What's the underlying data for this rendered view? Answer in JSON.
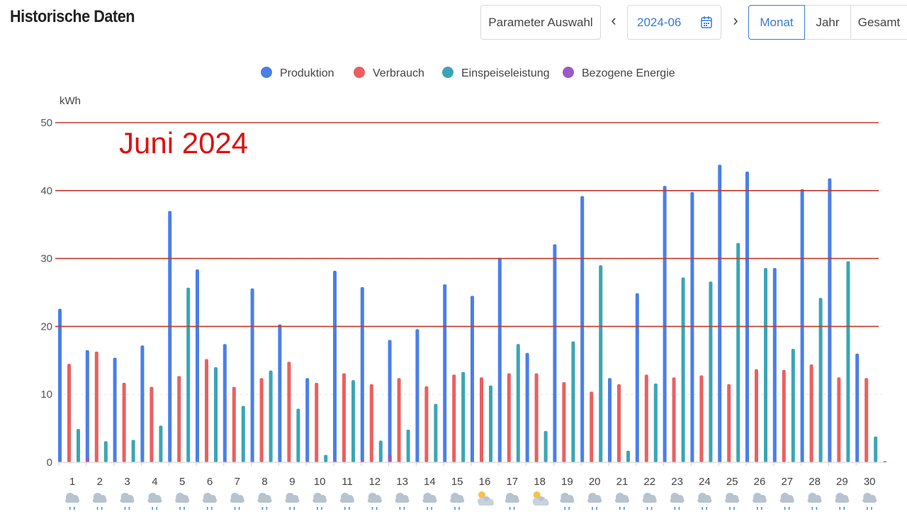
{
  "header": {
    "title": "Historische Daten",
    "param_button": "Parameter Auswahl",
    "date_value": "2024-06",
    "prev_icon": "chevron-left-icon",
    "next_icon": "chevron-right-icon",
    "calendar_icon": "calendar-icon",
    "views": [
      {
        "label": "Monat",
        "active": true
      },
      {
        "label": "Jahr",
        "active": false
      },
      {
        "label": "Gesamt",
        "active": false
      }
    ]
  },
  "colors": {
    "Produktion": "#4a7fe8",
    "Verbrauch": "#ec5f5f",
    "Einspeiseleistung": "#3ba5b5",
    "Bezogene Energie": "#9b59c9",
    "annotation": "#dd1111",
    "hline": "#c0392b"
  },
  "chart_data": {
    "type": "bar",
    "annotation": "Juni 2024",
    "ylabel": "kWh",
    "ylim": [
      0,
      50
    ],
    "yticks": [
      0,
      10,
      20,
      30,
      40,
      50
    ],
    "categories": [
      "1",
      "2",
      "3",
      "4",
      "5",
      "6",
      "7",
      "8",
      "9",
      "10",
      "11",
      "12",
      "13",
      "14",
      "15",
      "16",
      "17",
      "18",
      "19",
      "20",
      "21",
      "22",
      "23",
      "24",
      "25",
      "26",
      "27",
      "28",
      "29",
      "30"
    ],
    "series": [
      {
        "name": "Produktion",
        "values": [
          22.6,
          16.5,
          15.4,
          17.2,
          37.0,
          28.4,
          17.4,
          25.6,
          20.3,
          12.4,
          28.2,
          25.8,
          18.0,
          19.6,
          26.2,
          24.5,
          30.1,
          16.1,
          32.1,
          39.2,
          12.4,
          24.9,
          40.7,
          39.8,
          43.8,
          42.8,
          28.6,
          40.2,
          41.8,
          16.0
        ]
      },
      {
        "name": "Verbrauch",
        "values": [
          14.5,
          16.3,
          11.7,
          11.1,
          12.7,
          15.2,
          11.1,
          12.4,
          14.8,
          11.7,
          13.1,
          11.5,
          12.4,
          11.2,
          12.9,
          12.5,
          13.1,
          13.1,
          11.8,
          10.4,
          11.5,
          12.9,
          12.5,
          12.8,
          11.5,
          13.7,
          13.6,
          14.4,
          12.5,
          12.4
        ]
      },
      {
        "name": "Einspeiseleistung",
        "values": [
          4.9,
          3.1,
          3.3,
          5.4,
          25.7,
          14.0,
          8.3,
          13.5,
          7.9,
          1.1,
          12.1,
          3.2,
          4.8,
          8.6,
          13.3,
          11.3,
          17.4,
          4.6,
          17.8,
          29.0,
          1.7,
          11.6,
          27.2,
          26.6,
          32.3,
          28.6,
          16.7,
          24.2,
          29.6,
          3.8
        ]
      },
      {
        "name": "Bezogene Energie",
        "values": [
          0.7,
          0,
          0,
          0,
          0,
          0,
          0,
          0,
          0.1,
          0.3,
          0.4,
          1.1,
          0,
          0,
          0,
          0.1,
          0,
          0,
          0,
          0,
          0.1,
          0.1,
          0,
          0,
          0,
          0,
          0,
          0,
          0,
          0
        ]
      }
    ],
    "reference_lines": [
      20,
      30,
      40,
      50
    ],
    "legend_position": "top-center",
    "weather_icons": [
      "cloud-rain-icon",
      "cloud-rain-icon",
      "cloud-rain-icon",
      "cloud-rain-icon",
      "cloud-rain-icon",
      "cloud-rain-icon",
      "cloud-rain-icon",
      "cloud-rain-icon",
      "cloud-rain-icon",
      "cloud-rain-icon",
      "cloud-rain-icon",
      "cloud-rain-icon",
      "cloud-rain-icon",
      "cloud-rain-icon",
      "cloud-rain-icon",
      "partly-sunny-icon",
      "cloud-rain-icon",
      "partly-sunny-icon",
      "cloud-rain-icon",
      "cloud-rain-icon",
      "cloud-rain-icon",
      "cloud-rain-icon",
      "cloud-rain-icon",
      "cloud-rain-icon",
      "cloud-rain-icon",
      "cloud-rain-icon",
      "cloud-rain-icon",
      "cloud-rain-icon",
      "cloud-rain-icon",
      "cloud-rain-icon"
    ]
  }
}
